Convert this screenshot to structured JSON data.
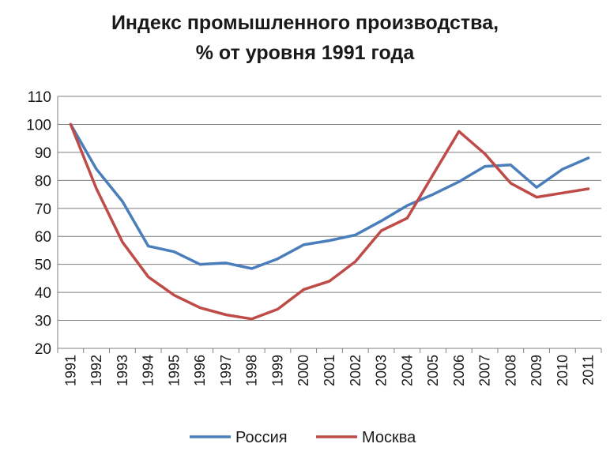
{
  "chart_data": {
    "type": "line",
    "title_line1": "Индекс промышленного производства,",
    "title_line2": "% от уровня 1991 года",
    "categories": [
      "1991",
      "1992",
      "1993",
      "1994",
      "1995",
      "1996",
      "1997",
      "1998",
      "1999",
      "2000",
      "2001",
      "2002",
      "2003",
      "2004",
      "2005",
      "2006",
      "2007",
      "2008",
      "2009",
      "2010",
      "2011"
    ],
    "series": [
      {
        "name": "Россия",
        "color": "#4a7ebb",
        "values": [
          100,
          84,
          72.5,
          56.5,
          54.5,
          50,
          50.5,
          48.5,
          52,
          57,
          58.5,
          60.5,
          65.5,
          71,
          75,
          79.5,
          85,
          85.5,
          77.5,
          84,
          88
        ]
      },
      {
        "name": "Москва",
        "color": "#be4b48",
        "values": [
          100,
          77,
          58,
          45.5,
          39,
          34.5,
          32,
          30.5,
          34,
          41,
          44,
          51,
          62,
          66.5,
          82,
          97.5,
          89.5,
          79,
          74,
          75.5,
          77
        ]
      }
    ],
    "yticks": [
      20,
      30,
      40,
      50,
      60,
      70,
      80,
      90,
      100,
      110
    ],
    "ylim": [
      20,
      110
    ],
    "grid": true,
    "legend_position": "bottom"
  }
}
